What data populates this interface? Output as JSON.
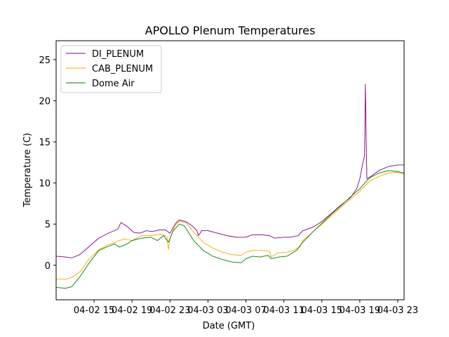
{
  "chart_data": {
    "type": "line",
    "title": "APOLLO Plenum Temperatures",
    "xlabel": "Date (GMT)",
    "ylabel": "Temperature (C)",
    "xlim": [
      "04-02 11:00",
      "04-03 23:40"
    ],
    "ylim": [
      -4.2,
      27.3
    ],
    "x_ticks": [
      {
        "x": "04-02 15:00",
        "label": "04-02 15"
      },
      {
        "x": "04-02 19:00",
        "label": "04-02 19"
      },
      {
        "x": "04-02 23:00",
        "label": "04-02 23"
      },
      {
        "x": "04-03 03:00",
        "label": "04-03 03"
      },
      {
        "x": "04-03 07:00",
        "label": "04-03 07"
      },
      {
        "x": "04-03 11:00",
        "label": "04-03 11"
      },
      {
        "x": "04-03 15:00",
        "label": "04-03 15"
      },
      {
        "x": "04-03 19:00",
        "label": "04-03 19"
      },
      {
        "x": "04-03 23:00",
        "label": "04-03 23"
      }
    ],
    "y_ticks": [
      0,
      5,
      10,
      15,
      20,
      25
    ],
    "grid": false,
    "legend": "top-left",
    "series": [
      {
        "name": "DI_PLENUM",
        "color": "#800080",
        "points": [
          [
            "04-02 11:00",
            1.1
          ],
          [
            "04-02 12:00",
            1.0
          ],
          [
            "04-02 12:40",
            0.9
          ],
          [
            "04-02 13:30",
            1.3
          ],
          [
            "04-02 14:30",
            2.3
          ],
          [
            "04-02 15:30",
            3.3
          ],
          [
            "04-02 16:30",
            3.9
          ],
          [
            "04-02 17:30",
            4.4
          ],
          [
            "04-02 17:50",
            5.2
          ],
          [
            "04-02 18:30",
            4.7
          ],
          [
            "04-02 19:10",
            4.0
          ],
          [
            "04-02 19:50",
            3.9
          ],
          [
            "04-02 20:30",
            4.2
          ],
          [
            "04-02 21:10",
            4.1
          ],
          [
            "04-02 21:50",
            4.3
          ],
          [
            "04-02 22:30",
            4.3
          ],
          [
            "04-02 23:00",
            3.9
          ],
          [
            "04-02 23:20",
            4.6
          ],
          [
            "04-02 23:40",
            5.2
          ],
          [
            "04-03 00:00",
            5.5
          ],
          [
            "04-03 00:40",
            5.3
          ],
          [
            "04-03 01:20",
            4.8
          ],
          [
            "04-03 01:50",
            4.2
          ],
          [
            "04-03 02:00",
            3.6
          ],
          [
            "04-03 02:20",
            4.2
          ],
          [
            "04-03 03:00",
            4.2
          ],
          [
            "04-03 04:00",
            3.9
          ],
          [
            "04-03 05:00",
            3.6
          ],
          [
            "04-03 06:00",
            3.4
          ],
          [
            "04-03 07:00",
            3.4
          ],
          [
            "04-03 07:40",
            3.7
          ],
          [
            "04-03 08:40",
            3.7
          ],
          [
            "04-03 09:30",
            3.6
          ],
          [
            "04-03 10:00",
            3.3
          ],
          [
            "04-03 11:00",
            3.4
          ],
          [
            "04-03 11:40",
            3.4
          ],
          [
            "04-03 12:30",
            3.6
          ],
          [
            "04-03 13:00",
            4.2
          ],
          [
            "04-03 14:00",
            4.6
          ],
          [
            "04-03 15:00",
            5.3
          ],
          [
            "04-03 16:00",
            6.3
          ],
          [
            "04-03 17:00",
            7.3
          ],
          [
            "04-03 18:00",
            8.2
          ],
          [
            "04-03 18:40",
            9.3
          ],
          [
            "04-03 19:00",
            10.5
          ],
          [
            "04-03 19:20",
            12.5
          ],
          [
            "04-03 19:30",
            13.3
          ],
          [
            "04-03 19:35",
            22.0
          ],
          [
            "04-03 19:40",
            15.5
          ],
          [
            "04-03 19:45",
            10.5
          ],
          [
            "04-03 20:10",
            10.8
          ],
          [
            "04-03 21:00",
            11.5
          ],
          [
            "04-03 22:00",
            12.0
          ],
          [
            "04-03 23:00",
            12.2
          ],
          [
            "04-03 23:40",
            12.2
          ]
        ]
      },
      {
        "name": "CAB_PLENUM",
        "color": "#FFA500",
        "points": [
          [
            "04-02 11:00",
            -1.7
          ],
          [
            "04-02 12:00",
            -1.7
          ],
          [
            "04-02 12:40",
            -1.5
          ],
          [
            "04-02 13:30",
            -0.8
          ],
          [
            "04-02 14:30",
            0.8
          ],
          [
            "04-02 15:30",
            1.9
          ],
          [
            "04-02 16:30",
            2.5
          ],
          [
            "04-02 17:30",
            2.9
          ],
          [
            "04-02 18:10",
            3.2
          ],
          [
            "04-02 19:00",
            3.0
          ],
          [
            "04-02 20:00",
            3.6
          ],
          [
            "04-02 21:00",
            3.6
          ],
          [
            "04-02 22:00",
            3.8
          ],
          [
            "04-02 22:40",
            3.5
          ],
          [
            "04-02 22:50",
            1.9
          ],
          [
            "04-02 23:00",
            3.2
          ],
          [
            "04-02 23:30",
            4.8
          ],
          [
            "04-03 00:00",
            5.4
          ],
          [
            "04-03 00:40",
            5.2
          ],
          [
            "04-03 01:30",
            4.0
          ],
          [
            "04-03 02:30",
            2.8
          ],
          [
            "04-03 03:30",
            2.1
          ],
          [
            "04-03 04:30",
            1.6
          ],
          [
            "04-03 05:30",
            1.3
          ],
          [
            "04-03 06:30",
            1.2
          ],
          [
            "04-03 07:00",
            1.6
          ],
          [
            "04-03 07:40",
            1.8
          ],
          [
            "04-03 08:40",
            1.8
          ],
          [
            "04-03 09:30",
            1.7
          ],
          [
            "04-03 09:40",
            1.0
          ],
          [
            "04-03 10:20",
            1.5
          ],
          [
            "04-03 11:20",
            1.6
          ],
          [
            "04-03 12:00",
            1.8
          ],
          [
            "04-03 12:40",
            2.2
          ],
          [
            "04-03 13:00",
            3.0
          ],
          [
            "04-03 14:00",
            4.0
          ],
          [
            "04-03 15:00",
            5.0
          ],
          [
            "04-03 16:00",
            6.0
          ],
          [
            "04-03 17:00",
            7.0
          ],
          [
            "04-03 18:00",
            8.0
          ],
          [
            "04-03 19:00",
            9.0
          ],
          [
            "04-03 20:00",
            10.2
          ],
          [
            "04-03 21:00",
            10.8
          ],
          [
            "04-03 22:00",
            11.2
          ],
          [
            "04-03 23:00",
            11.3
          ],
          [
            "04-03 23:40",
            11.1
          ]
        ]
      },
      {
        "name": "Dome Air",
        "color": "#008000",
        "points": [
          [
            "04-02 11:00",
            -2.7
          ],
          [
            "04-02 12:00",
            -2.8
          ],
          [
            "04-02 12:40",
            -2.6
          ],
          [
            "04-02 13:30",
            -1.4
          ],
          [
            "04-02 14:30",
            0.3
          ],
          [
            "04-02 15:30",
            1.8
          ],
          [
            "04-02 16:30",
            2.3
          ],
          [
            "04-02 17:10",
            2.6
          ],
          [
            "04-02 17:40",
            2.2
          ],
          [
            "04-02 18:30",
            2.6
          ],
          [
            "04-02 19:00",
            3.0
          ],
          [
            "04-02 20:00",
            3.3
          ],
          [
            "04-02 21:00",
            3.4
          ],
          [
            "04-02 21:40",
            3.0
          ],
          [
            "04-02 22:20",
            3.6
          ],
          [
            "04-02 22:50",
            2.8
          ],
          [
            "04-02 23:20",
            4.2
          ],
          [
            "04-03 00:00",
            5.0
          ],
          [
            "04-03 00:30",
            4.8
          ],
          [
            "04-03 01:30",
            3.0
          ],
          [
            "04-03 02:30",
            1.8
          ],
          [
            "04-03 03:30",
            1.1
          ],
          [
            "04-03 04:30",
            0.7
          ],
          [
            "04-03 05:30",
            0.4
          ],
          [
            "04-03 06:30",
            0.3
          ],
          [
            "04-03 07:00",
            0.8
          ],
          [
            "04-03 07:40",
            1.1
          ],
          [
            "04-03 08:30",
            1.0
          ],
          [
            "04-03 09:20",
            1.2
          ],
          [
            "04-03 09:40",
            0.8
          ],
          [
            "04-03 10:30",
            1.0
          ],
          [
            "04-03 11:20",
            1.1
          ],
          [
            "04-03 12:20",
            1.8
          ],
          [
            "04-03 12:50",
            2.6
          ],
          [
            "04-03 14:00",
            4.0
          ],
          [
            "04-03 15:00",
            5.1
          ],
          [
            "04-03 16:00",
            6.2
          ],
          [
            "04-03 17:00",
            7.2
          ],
          [
            "04-03 18:00",
            8.3
          ],
          [
            "04-03 19:00",
            9.3
          ],
          [
            "04-03 20:00",
            10.6
          ],
          [
            "04-03 21:00",
            11.2
          ],
          [
            "04-03 22:00",
            11.5
          ],
          [
            "04-03 23:00",
            11.4
          ],
          [
            "04-03 23:40",
            11.2
          ]
        ]
      }
    ]
  }
}
